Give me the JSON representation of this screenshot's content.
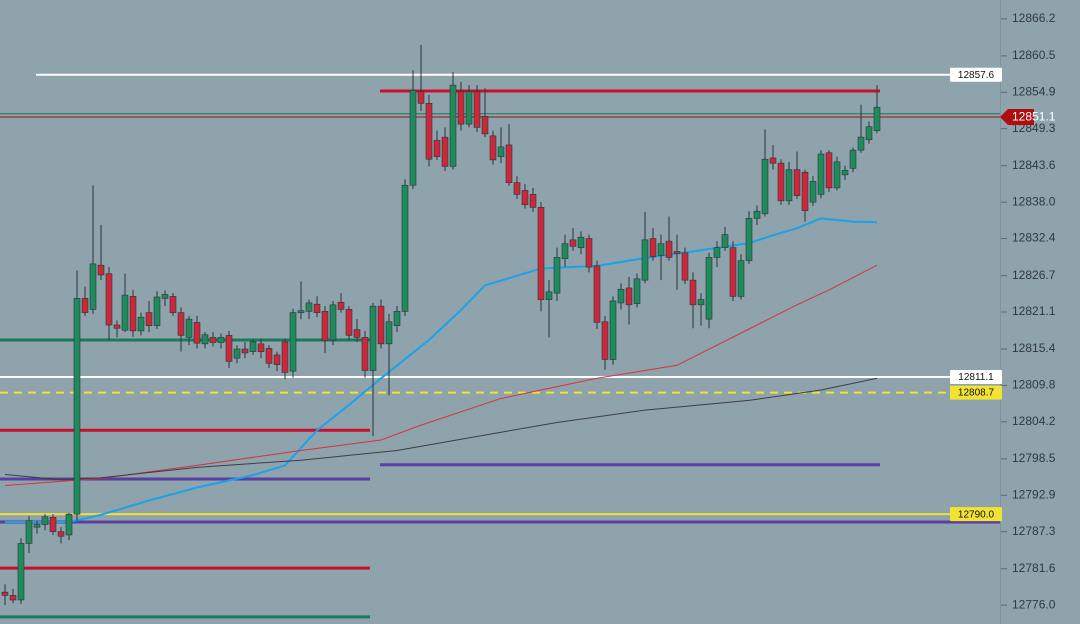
{
  "chart_data": {
    "type": "candlestick",
    "up_color": "#1f8a5c",
    "down_color": "#c92a3a",
    "ylim": [
      12773.1,
      12869.1
    ],
    "yticks": [
      12866.2,
      12860.5,
      12854.9,
      12849.3,
      12843.6,
      {
        "value": 12838,
        "label": "12838.0"
      },
      12832.4,
      12826.7,
      12821.1,
      12815.4,
      12809.8,
      12804.2,
      12798.5,
      12792.9,
      12787.3,
      12781.6,
      {
        "value": 12776,
        "label": "12776.0"
      }
    ],
    "ohlc": [
      [
        12778.0,
        12779.2,
        12776.0,
        12777.5
      ],
      [
        12777.5,
        12778.5,
        12776.3,
        12776.8
      ],
      [
        12776.8,
        12786.3,
        12776.2,
        12785.5
      ],
      [
        12785.5,
        12789.7,
        12784.0,
        12789.0
      ],
      [
        12788.0,
        12789.0,
        12787.0,
        12788.4
      ],
      [
        12788.4,
        12790.0,
        12787.5,
        12789.6
      ],
      [
        12789.5,
        12790.0,
        12786.8,
        12787.3
      ],
      [
        12787.3,
        12788.0,
        12785.5,
        12786.6
      ],
      [
        12786.8,
        12790.2,
        12786.0,
        12790.0
      ],
      [
        12790.0,
        12827.5,
        12789.0,
        12823.2
      ],
      [
        12823.2,
        12825.0,
        12820.5,
        12821.0
      ],
      [
        12821.5,
        12840.6,
        12820.8,
        12828.5
      ],
      [
        12828.3,
        12834.5,
        12826.0,
        12826.8
      ],
      [
        12827.0,
        12828.0,
        12816.8,
        12819.1
      ],
      [
        12819.1,
        12819.8,
        12817.2,
        12818.6
      ],
      [
        12818.3,
        12827.0,
        12818.0,
        12823.7
      ],
      [
        12823.5,
        12824.5,
        12817.3,
        12818.2
      ],
      [
        12818.2,
        12821.0,
        12817.5,
        12820.3
      ],
      [
        12821.0,
        12822.8,
        12818.0,
        12819.0
      ],
      [
        12819.0,
        12824.3,
        12818.5,
        12823.4
      ],
      [
        12823.2,
        12824.4,
        12822.0,
        12823.8
      ],
      [
        12823.5,
        12824.0,
        12820.5,
        12821.0
      ],
      [
        12821.0,
        12821.8,
        12815.0,
        12817.5
      ],
      [
        12817.2,
        12820.5,
        12816.0,
        12820.0
      ],
      [
        12819.5,
        12820.5,
        12815.5,
        12816.3
      ],
      [
        12816.2,
        12818.0,
        12815.5,
        12817.6
      ],
      [
        12817.2,
        12818.0,
        12815.8,
        12816.4
      ],
      [
        12816.4,
        12817.8,
        12815.5,
        12817.2
      ],
      [
        12817.5,
        12818.2,
        12812.5,
        12813.5
      ],
      [
        12814.0,
        12816.0,
        12813.2,
        12815.4
      ],
      [
        12815.4,
        12816.5,
        12814.0,
        12814.8
      ],
      [
        12815.0,
        12817.0,
        12814.5,
        12816.5
      ],
      [
        12816.2,
        12817.0,
        12814.0,
        12815.0
      ],
      [
        12815.5,
        12816.0,
        12812.5,
        12813.2
      ],
      [
        12814.5,
        12815.0,
        12812.0,
        12813.0
      ],
      [
        12816.5,
        12817.0,
        12810.8,
        12811.8
      ],
      [
        12812.0,
        12821.6,
        12811.0,
        12821.0
      ],
      [
        12821.0,
        12825.8,
        12820.0,
        12821.3
      ],
      [
        12821.2,
        12823.0,
        12820.0,
        12822.5
      ],
      [
        12822.3,
        12823.5,
        12820.3,
        12821.0
      ],
      [
        12821.2,
        12822.0,
        12814.8,
        12816.7
      ],
      [
        12816.8,
        12822.8,
        12816.0,
        12822.2
      ],
      [
        12822.6,
        12824.0,
        12821.0,
        12821.5
      ],
      [
        12821.5,
        12822.0,
        12816.8,
        12817.5
      ],
      [
        12818.4,
        12820.0,
        12816.5,
        12817.2
      ],
      [
        12817.2,
        12818.2,
        12811.0,
        12812.1
      ],
      [
        12812.1,
        12822.5,
        12802.0,
        12822.0
      ],
      [
        12822.0,
        12823.0,
        12815.5,
        12816.2
      ],
      [
        12816.2,
        12820.8,
        12808.3,
        12819.6
      ],
      [
        12819.0,
        12822.0,
        12818.0,
        12821.2
      ],
      [
        12821.2,
        12841.5,
        12820.5,
        12840.6
      ],
      [
        12840.6,
        12858.3,
        12840.0,
        12855.2
      ],
      [
        12855.0,
        12862.2,
        12852.0,
        12853.2
      ],
      [
        12853.2,
        12854.5,
        12843.5,
        12844.6
      ],
      [
        12847.5,
        12849.0,
        12844.5,
        12845.0
      ],
      [
        12848.0,
        12849.5,
        12842.8,
        12843.5
      ],
      [
        12843.5,
        12858.0,
        12843.0,
        12856.0
      ],
      [
        12855.0,
        12856.5,
        12849.0,
        12850.0
      ],
      [
        12850.0,
        12856.0,
        12849.5,
        12855.0
      ],
      [
        12855.0,
        12856.0,
        12848.8,
        12849.5
      ],
      [
        12851.2,
        12855.5,
        12848.0,
        12848.5
      ],
      [
        12848.2,
        12849.0,
        12843.8,
        12844.5
      ],
      [
        12845.0,
        12849.5,
        12844.0,
        12846.5
      ],
      [
        12846.8,
        12850.0,
        12840.5,
        12841.0
      ],
      [
        12841.0,
        12842.0,
        12838.5,
        12839.2
      ],
      [
        12839.8,
        12840.8,
        12837.0,
        12837.6
      ],
      [
        12839.2,
        12840.2,
        12836.5,
        12837.2
      ],
      [
        12837.2,
        12838.0,
        12821.2,
        12823.0
      ],
      [
        12823.0,
        12826.0,
        12817.2,
        12824.2
      ],
      [
        12824.0,
        12831.0,
        12822.8,
        12829.5
      ],
      [
        12829.3,
        12833.0,
        12828.0,
        12831.6
      ],
      [
        12832.2,
        12834.0,
        12830.5,
        12831.2
      ],
      [
        12831.0,
        12833.5,
        12830.0,
        12832.6
      ],
      [
        12832.4,
        12833.0,
        12827.2,
        12828.0
      ],
      [
        12828.2,
        12829.0,
        12818.5,
        12819.5
      ],
      [
        12819.6,
        12820.5,
        12812.2,
        12813.8
      ],
      [
        12813.8,
        12823.5,
        12813.0,
        12822.8
      ],
      [
        12822.5,
        12825.5,
        12821.5,
        12824.6
      ],
      [
        12824.8,
        12826.5,
        12819.2,
        12822.2
      ],
      [
        12822.4,
        12827.0,
        12821.8,
        12826.2
      ],
      [
        12826.0,
        12836.5,
        12825.5,
        12832.2
      ],
      [
        12832.4,
        12834.0,
        12829.0,
        12829.6
      ],
      [
        12829.8,
        12833.0,
        12826.0,
        12831.6
      ],
      [
        12832.0,
        12835.8,
        12829.0,
        12829.5
      ],
      [
        12830.4,
        12833.0,
        12824.5,
        12830.1
      ],
      [
        12830.2,
        12831.0,
        12825.4,
        12826.0
      ],
      [
        12826.0,
        12827.2,
        12818.6,
        12822.2
      ],
      [
        12822.2,
        12824.0,
        12819.0,
        12823.0
      ],
      [
        12820.0,
        12830.2,
        12818.6,
        12829.5
      ],
      [
        12829.5,
        12832.0,
        12828.0,
        12831.0
      ],
      [
        12831.0,
        12834.2,
        12830.5,
        12833.0
      ],
      [
        12831.0,
        12832.0,
        12822.8,
        12823.5
      ],
      [
        12823.5,
        12830.0,
        12823.0,
        12829.0
      ],
      [
        12829.0,
        12836.6,
        12828.5,
        12835.5
      ],
      [
        12835.5,
        12837.5,
        12834.5,
        12836.6
      ],
      [
        12836.2,
        12849.2,
        12835.8,
        12844.6
      ],
      [
        12844.8,
        12846.8,
        12843.0,
        12844.0
      ],
      [
        12844.0,
        12844.6,
        12837.6,
        12838.2
      ],
      [
        12838.2,
        12844.2,
        12837.6,
        12843.0
      ],
      [
        12843.0,
        12845.8,
        12838.5,
        12839.0
      ],
      [
        12842.6,
        12843.0,
        12835.0,
        12836.7
      ],
      [
        12838.0,
        12842.0,
        12837.4,
        12841.2
      ],
      [
        12839.2,
        12846.0,
        12838.6,
        12845.4
      ],
      [
        12845.6,
        12846.0,
        12839.6,
        12840.2
      ],
      [
        12840.2,
        12845.0,
        12839.8,
        12844.2
      ],
      [
        12842.2,
        12843.6,
        12841.4,
        12842.9
      ],
      [
        12843.2,
        12846.4,
        12842.6,
        12846.0
      ],
      [
        12846.0,
        12853.0,
        12845.6,
        12848.0
      ],
      [
        12847.6,
        12850.4,
        12847.0,
        12849.6
      ],
      [
        12849.0,
        12856.0,
        12848.6,
        12852.6
      ]
    ],
    "series": [
      {
        "color": "#1aa3e8",
        "x": [
          0,
          8,
          12,
          18,
          24,
          31,
          35,
          39,
          43,
          47,
          53,
          57,
          60,
          63,
          67,
          74,
          80,
          87,
          93,
          96,
          99,
          102,
          106,
          109
        ],
        "values": [
          12788.8,
          12788.8,
          12789.9,
          12792.1,
          12794.1,
          12796.0,
          12797.5,
          12802.9,
          12806.8,
          12810.9,
          12816.8,
          12821.4,
          12825.2,
          12826.3,
          12827.8,
          12828.2,
          12829.4,
          12830.6,
          12831.7,
          12832.9,
          12834.0,
          12835.5,
          12835.0,
          12834.9
        ]
      },
      {
        "color": "#d6333a",
        "x": [
          0,
          12,
          24,
          37,
          47,
          52,
          62,
          67,
          74,
          84,
          89,
          94,
          99,
          103,
          109
        ],
        "values": [
          12794.4,
          12795.5,
          12797.5,
          12799.8,
          12801.4,
          12803.7,
          12807.8,
          12809.1,
          12810.9,
          12812.9,
          12816.0,
          12819.1,
          12822.2,
          12824.5,
          12828.3
        ]
      },
      {
        "color": "#3a3f44",
        "x": [
          0,
          7,
          12,
          24,
          37,
          49,
          62,
          69,
          80,
          93,
          102,
          109
        ],
        "values": [
          12796.1,
          12795.3,
          12795.6,
          12797.2,
          12798.3,
          12799.8,
          12802.6,
          12804.1,
          12806.0,
          12807.5,
          12809.1,
          12810.9
        ]
      }
    ],
    "levels": [
      {
        "value": 12857.6,
        "color": "#ffffff",
        "tag": true,
        "tag_color": "#ffffff"
      },
      {
        "value": 12855.1,
        "color": "#c8102e"
      },
      {
        "value": 12851.6,
        "color": "#1a7a5a"
      },
      {
        "value": 12851.1,
        "color": "#9a1414",
        "tag": true,
        "tag_color": "#b00e0e"
      },
      {
        "value": 12816.8,
        "color": "#1a7a5a"
      },
      {
        "value": 12811.1,
        "color": "#ffffff",
        "tag": true,
        "tag_color": "#ffffff"
      },
      {
        "value": 12808.7,
        "color": "#f2e232",
        "dashed": true,
        "tag": true,
        "tag_color": "#f2e232"
      },
      {
        "value": 12802.9,
        "color": "#c8102e"
      },
      {
        "value": 12797.6,
        "color": "#5b3fa0"
      },
      {
        "value": 12795.4,
        "color": "#5b3fa0"
      },
      {
        "value": 12790,
        "label": "12790.0",
        "color": "#f2e232",
        "tag": true,
        "tag_color": "#f2e232"
      },
      {
        "value": 12788.8,
        "color": "#5b3fa0"
      },
      {
        "value": 12781.7,
        "color": "#c8102e"
      },
      {
        "value": 12774.2,
        "color": "#1a7a5a"
      }
    ]
  }
}
